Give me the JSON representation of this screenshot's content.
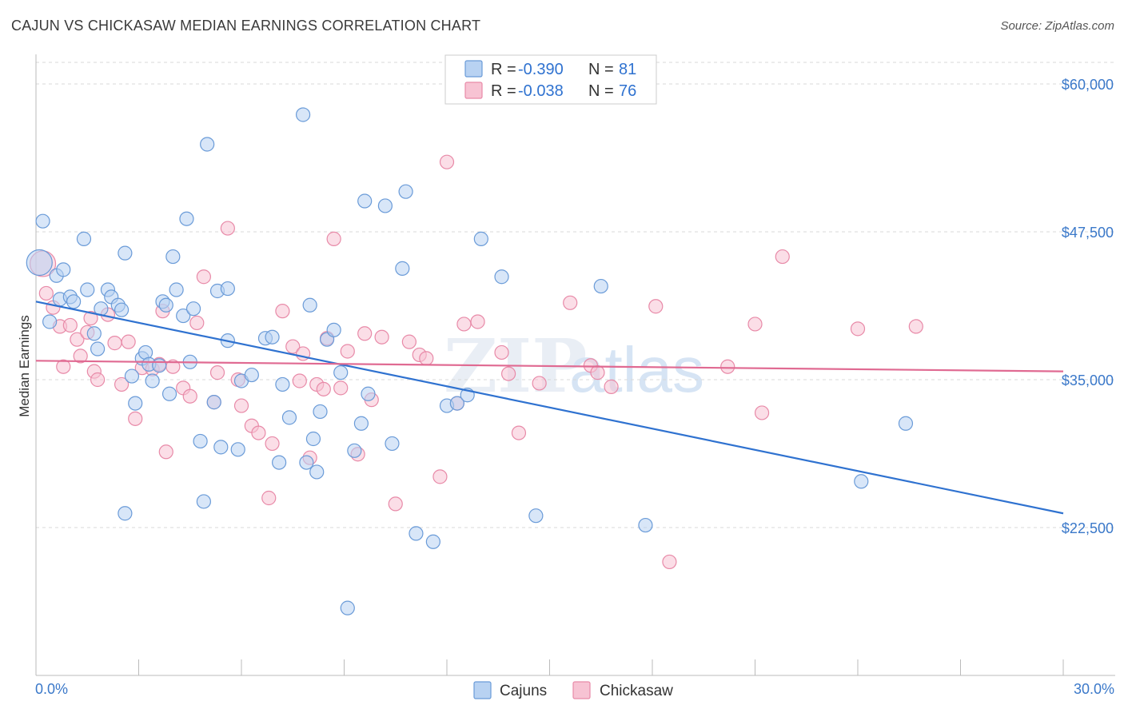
{
  "header": {
    "title": "CAJUN VS CHICKASAW MEDIAN EARNINGS CORRELATION CHART",
    "source": "Source: ZipAtlas.com"
  },
  "watermark": {
    "zip": "ZIP",
    "atlas": "atlas"
  },
  "legend": {
    "cajun": {
      "r_label": "R = ",
      "r_value": "-0.390",
      "n_label": "N = ",
      "n_value": "81"
    },
    "chickasaw": {
      "r_label": "R = ",
      "r_value": "-0.038",
      "n_label": "N = ",
      "n_value": "76"
    }
  },
  "bottom_legend": {
    "cajun": "Cajuns",
    "chickasaw": "Chickasaw"
  },
  "colors": {
    "cajun_fill": "#b8d2f2",
    "cajun_stroke": "#6a9bd8",
    "cajun_line": "#2f72d0",
    "chickasaw_fill": "#f7c3d3",
    "chickasaw_stroke": "#e88aa8",
    "chickasaw_line": "#e06a92",
    "tick": "#3a78c9",
    "grid": "#d8d8d8"
  },
  "chart_data": {
    "type": "scatter",
    "title": "CAJUN VS CHICKASAW MEDIAN EARNINGS CORRELATION CHART",
    "xlabel": "",
    "ylabel": "Median Earnings",
    "xlim": [
      0,
      30
    ],
    "ylim": [
      10000,
      62500
    ],
    "x_tick_labels": [
      "0.0%",
      "30.0%"
    ],
    "y_ticks": [
      22500,
      35000,
      47500,
      60000
    ],
    "y_tick_labels": [
      "$22,500",
      "$35,000",
      "$47,500",
      "$60,000"
    ],
    "series": [
      {
        "name": "Cajuns",
        "r": -0.39,
        "n": 81,
        "trend": {
          "x": [
            0,
            30
          ],
          "y": [
            41600,
            23700
          ]
        },
        "points": [
          [
            0.1,
            44900
          ],
          [
            0.2,
            48400
          ],
          [
            0.4,
            39900
          ],
          [
            0.6,
            43800
          ],
          [
            0.7,
            41800
          ],
          [
            0.8,
            44300
          ],
          [
            1.0,
            42000
          ],
          [
            1.1,
            41600
          ],
          [
            1.4,
            46900
          ],
          [
            1.5,
            42600
          ],
          [
            1.7,
            38900
          ],
          [
            1.8,
            37600
          ],
          [
            1.9,
            41000
          ],
          [
            2.1,
            42600
          ],
          [
            2.2,
            42000
          ],
          [
            2.4,
            41300
          ],
          [
            2.5,
            40900
          ],
          [
            2.6,
            45700
          ],
          [
            2.8,
            35300
          ],
          [
            2.9,
            33000
          ],
          [
            3.1,
            36800
          ],
          [
            3.2,
            37300
          ],
          [
            3.3,
            36300
          ],
          [
            3.4,
            34900
          ],
          [
            3.6,
            36200
          ],
          [
            3.7,
            41600
          ],
          [
            3.8,
            41300
          ],
          [
            3.9,
            33800
          ],
          [
            4.0,
            45400
          ],
          [
            4.1,
            42600
          ],
          [
            4.3,
            40400
          ],
          [
            4.4,
            48600
          ],
          [
            4.5,
            36500
          ],
          [
            4.6,
            41000
          ],
          [
            4.8,
            29800
          ],
          [
            5.0,
            54900
          ],
          [
            5.2,
            33100
          ],
          [
            5.4,
            29300
          ],
          [
            5.3,
            42500
          ],
          [
            5.6,
            42700
          ],
          [
            5.6,
            38300
          ],
          [
            5.9,
            29100
          ],
          [
            6.0,
            34900
          ],
          [
            6.3,
            35400
          ],
          [
            6.7,
            38500
          ],
          [
            6.9,
            38600
          ],
          [
            7.1,
            28000
          ],
          [
            7.2,
            34600
          ],
          [
            7.4,
            31800
          ],
          [
            7.8,
            57400
          ],
          [
            7.9,
            28000
          ],
          [
            8.0,
            41300
          ],
          [
            8.2,
            27200
          ],
          [
            8.3,
            32300
          ],
          [
            8.5,
            38400
          ],
          [
            8.7,
            39200
          ],
          [
            8.9,
            35600
          ],
          [
            9.3,
            29000
          ],
          [
            9.5,
            31300
          ],
          [
            9.7,
            33800
          ],
          [
            9.6,
            50100
          ],
          [
            10.2,
            49700
          ],
          [
            10.4,
            29600
          ],
          [
            10.7,
            44400
          ],
          [
            10.8,
            50900
          ],
          [
            11.1,
            22000
          ],
          [
            11.6,
            21300
          ],
          [
            12.0,
            32800
          ],
          [
            12.3,
            33000
          ],
          [
            12.6,
            33700
          ],
          [
            13.0,
            46900
          ],
          [
            13.6,
            43700
          ],
          [
            14.6,
            23500
          ],
          [
            16.5,
            42900
          ],
          [
            17.8,
            22700
          ],
          [
            24.1,
            26400
          ],
          [
            25.4,
            31300
          ],
          [
            8.1,
            30000
          ],
          [
            4.9,
            24700
          ],
          [
            2.6,
            23700
          ],
          [
            9.1,
            15700
          ]
        ]
      },
      {
        "name": "Chickasaw",
        "r": -0.038,
        "n": 76,
        "trend": {
          "x": [
            0,
            30
          ],
          "y": [
            36600,
            35700
          ]
        },
        "points": [
          [
            0.2,
            44800
          ],
          [
            0.3,
            42300
          ],
          [
            0.5,
            41100
          ],
          [
            0.7,
            39500
          ],
          [
            0.8,
            36100
          ],
          [
            1.0,
            39600
          ],
          [
            1.2,
            38400
          ],
          [
            1.3,
            37000
          ],
          [
            1.5,
            39000
          ],
          [
            1.6,
            40200
          ],
          [
            1.7,
            35700
          ],
          [
            1.8,
            35000
          ],
          [
            2.1,
            40500
          ],
          [
            2.3,
            38100
          ],
          [
            2.5,
            34600
          ],
          [
            2.7,
            38200
          ],
          [
            2.9,
            31700
          ],
          [
            3.1,
            36000
          ],
          [
            3.4,
            35900
          ],
          [
            3.6,
            36300
          ],
          [
            3.7,
            40800
          ],
          [
            3.8,
            28900
          ],
          [
            4.0,
            36100
          ],
          [
            4.3,
            34300
          ],
          [
            4.5,
            33600
          ],
          [
            4.7,
            39800
          ],
          [
            4.9,
            43700
          ],
          [
            5.2,
            33100
          ],
          [
            5.3,
            35600
          ],
          [
            5.6,
            47800
          ],
          [
            6.0,
            32800
          ],
          [
            6.3,
            31100
          ],
          [
            6.5,
            30500
          ],
          [
            6.8,
            25000
          ],
          [
            6.9,
            29600
          ],
          [
            7.2,
            40800
          ],
          [
            7.5,
            37800
          ],
          [
            7.7,
            34900
          ],
          [
            7.8,
            37200
          ],
          [
            8.0,
            28400
          ],
          [
            8.2,
            34600
          ],
          [
            8.4,
            34200
          ],
          [
            8.5,
            38500
          ],
          [
            8.7,
            46900
          ],
          [
            8.9,
            34300
          ],
          [
            9.1,
            37400
          ],
          [
            9.4,
            28700
          ],
          [
            9.6,
            38900
          ],
          [
            9.8,
            33300
          ],
          [
            10.1,
            38600
          ],
          [
            10.5,
            24500
          ],
          [
            10.9,
            38200
          ],
          [
            11.2,
            37100
          ],
          [
            11.4,
            36800
          ],
          [
            11.8,
            26800
          ],
          [
            12.0,
            53400
          ],
          [
            12.3,
            33000
          ],
          [
            12.5,
            39700
          ],
          [
            12.9,
            39900
          ],
          [
            13.6,
            37300
          ],
          [
            13.8,
            35500
          ],
          [
            14.1,
            30500
          ],
          [
            14.7,
            34700
          ],
          [
            15.6,
            41500
          ],
          [
            16.2,
            36200
          ],
          [
            16.4,
            35600
          ],
          [
            16.8,
            34400
          ],
          [
            18.1,
            41200
          ],
          [
            18.5,
            19600
          ],
          [
            20.2,
            36100
          ],
          [
            21.0,
            39700
          ],
          [
            21.2,
            32200
          ],
          [
            21.8,
            45400
          ],
          [
            24.0,
            39300
          ],
          [
            25.7,
            39500
          ],
          [
            5.9,
            35000
          ]
        ]
      }
    ],
    "legend_position": "top-center",
    "grid": true
  }
}
